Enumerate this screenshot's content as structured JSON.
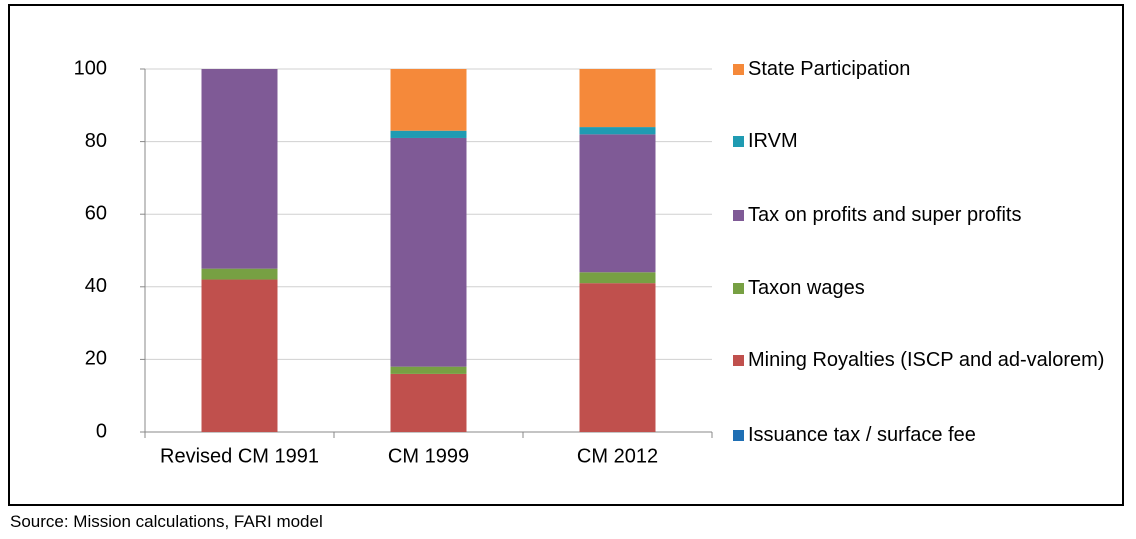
{
  "chart_data": {
    "type": "stacked-bar",
    "categories": [
      "Revised CM 1991",
      "CM 1999",
      "CM 2012"
    ],
    "series": [
      {
        "name": "Issuance tax / surface fee",
        "color": "#1f6fb4",
        "values": [
          0,
          0,
          0
        ]
      },
      {
        "name": "Mining Royalties (ISCP and ad-valorem)",
        "color": "#c0504d",
        "values": [
          42,
          16,
          41
        ]
      },
      {
        "name": "Taxon wages",
        "color": "#77a043",
        "values": [
          3,
          2,
          3
        ]
      },
      {
        "name": "Tax on profits and super profits",
        "color": "#7f5a96",
        "values": [
          55,
          63,
          38
        ]
      },
      {
        "name": "IRVM",
        "color": "#1f9bb2",
        "values": [
          0,
          2,
          2
        ]
      },
      {
        "name": "State Participation",
        "color": "#f5893a",
        "values": [
          0,
          17,
          16
        ]
      }
    ],
    "ylim": [
      0,
      100
    ],
    "yticks": [
      0,
      20,
      40,
      60,
      80,
      100
    ],
    "grid": true
  },
  "source": "Source: Mission calculations, FARI model"
}
